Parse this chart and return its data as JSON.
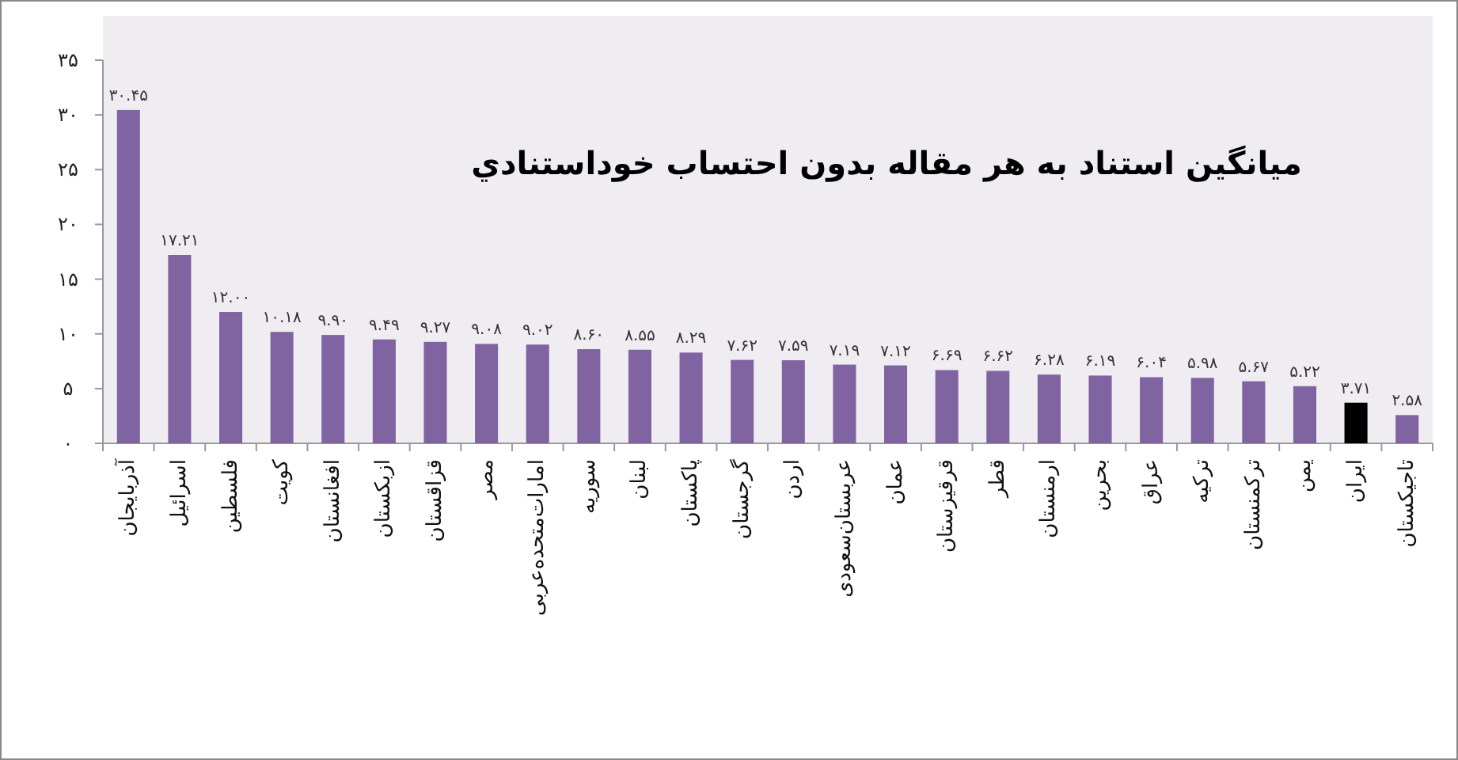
{
  "chart_data": {
    "type": "bar",
    "title": "میانگین استناد به هر مقاله بدون احتساب خوداستنادي",
    "categories": [
      "آذربایجان",
      "اسرائیل",
      "فلسطین",
      "کویت",
      "افغانستان",
      "ازبکستان",
      "قزاقستان",
      "مصر",
      "امارات‌متحده‌عربی",
      "سوریه",
      "لبنان",
      "پاکستان",
      "گرجستان",
      "اردن",
      "عربستان‌سعودی",
      "عمان",
      "قرقیزستان",
      "قطر",
      "ارمنستان",
      "بحرین",
      "عراق",
      "ترکیه",
      "ترکمنستان",
      "یمن",
      "ایران",
      "تاجیکستان"
    ],
    "values": [
      30.45,
      17.21,
      12.0,
      10.18,
      9.9,
      9.49,
      9.27,
      9.08,
      9.02,
      8.6,
      8.55,
      8.29,
      7.62,
      7.59,
      7.19,
      7.12,
      6.69,
      6.62,
      6.28,
      6.19,
      6.04,
      5.98,
      5.67,
      5.22,
      3.71,
      2.58
    ],
    "colors": [
      "#8064a2",
      "#8064a2",
      "#8064a2",
      "#8064a2",
      "#8064a2",
      "#8064a2",
      "#8064a2",
      "#8064a2",
      "#8064a2",
      "#8064a2",
      "#8064a2",
      "#8064a2",
      "#8064a2",
      "#8064a2",
      "#8064a2",
      "#8064a2",
      "#8064a2",
      "#8064a2",
      "#8064a2",
      "#8064a2",
      "#8064a2",
      "#8064a2",
      "#8064a2",
      "#8064a2",
      "#000000",
      "#8064a2"
    ],
    "value_labels": [
      "۳۰.۴۵",
      "۱۷.۲۱",
      "۱۲.۰۰",
      "۱۰.۱۸",
      "۹.۹۰",
      "۹.۴۹",
      "۹.۲۷",
      "۹.۰۸",
      "۹.۰۲",
      "۸.۶۰",
      "۸.۵۵",
      "۸.۲۹",
      "۷.۶۲",
      "۷.۵۹",
      "۷.۱۹",
      "۷.۱۲",
      "۶.۶۹",
      "۶.۶۲",
      "۶.۲۸",
      "۶.۱۹",
      "۶.۰۴",
      "۵.۹۸",
      "۵.۶۷",
      "۵.۲۲",
      "۳.۷۱",
      "۲.۵۸"
    ],
    "ylim": [
      0,
      35
    ],
    "yticks": [
      {
        "value": 0,
        "label": "۰"
      },
      {
        "value": 5,
        "label": "۵"
      },
      {
        "value": 10,
        "label": "۱۰"
      },
      {
        "value": 15,
        "label": "۱۵"
      },
      {
        "value": 20,
        "label": "۲۰"
      },
      {
        "value": 25,
        "label": "۲۵"
      },
      {
        "value": 30,
        "label": "۳۰"
      },
      {
        "value": 35,
        "label": "۳۵"
      }
    ],
    "grid": false
  }
}
